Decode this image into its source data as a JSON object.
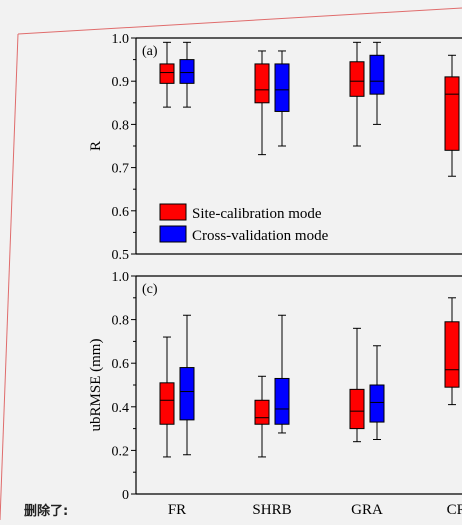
{
  "annotation": "删除了:",
  "colors": {
    "site_calibration": "#ff0000",
    "cross_validation": "#0000ff",
    "frame_accent": "#e06c6c"
  },
  "chart_data": [
    {
      "type": "box",
      "panel_label": "(a)",
      "ylabel": "R",
      "ylim": [
        0.5,
        1.0
      ],
      "yticks": [
        "0.5",
        "0.6",
        "0.7",
        "0.8",
        "0.9",
        "1.0"
      ],
      "categories": [
        "FR",
        "SHRB",
        "GRA",
        "CRO"
      ],
      "legend": {
        "placement": "bottom-left",
        "entries": [
          "Site-calibration mode",
          "Cross-validation mode"
        ]
      },
      "series": [
        {
          "name": "Site-calibration mode",
          "boxes": [
            {
              "min": 0.84,
              "q1": 0.895,
              "median": 0.92,
              "q3": 0.94,
              "max": 0.99
            },
            {
              "min": 0.73,
              "q1": 0.85,
              "median": 0.88,
              "q3": 0.94,
              "max": 0.97
            },
            {
              "min": 0.75,
              "q1": 0.865,
              "median": 0.9,
              "q3": 0.945,
              "max": 0.99
            },
            {
              "min": 0.68,
              "q1": 0.74,
              "median": 0.87,
              "q3": 0.91,
              "max": 0.96
            }
          ]
        },
        {
          "name": "Cross-validation mode",
          "boxes": [
            {
              "min": 0.84,
              "q1": 0.895,
              "median": 0.92,
              "q3": 0.95,
              "max": 0.99
            },
            {
              "min": 0.75,
              "q1": 0.83,
              "median": 0.88,
              "q3": 0.94,
              "max": 0.97
            },
            {
              "min": 0.8,
              "q1": 0.87,
              "median": 0.9,
              "q3": 0.96,
              "max": 0.99
            },
            {
              "min": 0.69,
              "q1": 0.75,
              "median": 0.86,
              "q3": 0.91,
              "max": 0.96
            }
          ]
        }
      ]
    },
    {
      "type": "box",
      "panel_label": "(c)",
      "ylabel": "ubRMSE (mm)",
      "ylim": [
        0,
        1.0
      ],
      "yticks": [
        "0",
        "0.2",
        "0.4",
        "0.6",
        "0.8",
        "1.0"
      ],
      "categories": [
        "FR",
        "SHRB",
        "GRA",
        "CRO"
      ],
      "series": [
        {
          "name": "Site-calibration mode",
          "boxes": [
            {
              "min": 0.17,
              "q1": 0.32,
              "median": 0.43,
              "q3": 0.51,
              "max": 0.72
            },
            {
              "min": 0.17,
              "q1": 0.32,
              "median": 0.35,
              "q3": 0.43,
              "max": 0.54
            },
            {
              "min": 0.24,
              "q1": 0.3,
              "median": 0.38,
              "q3": 0.48,
              "max": 0.76
            },
            {
              "min": 0.41,
              "q1": 0.49,
              "median": 0.57,
              "q3": 0.79,
              "max": 0.9
            }
          ]
        },
        {
          "name": "Cross-validation mode",
          "boxes": [
            {
              "min": 0.18,
              "q1": 0.34,
              "median": 0.47,
              "q3": 0.58,
              "max": 0.82
            },
            {
              "min": 0.28,
              "q1": 0.32,
              "median": 0.39,
              "q3": 0.53,
              "max": 0.82
            },
            {
              "min": 0.25,
              "q1": 0.33,
              "median": 0.42,
              "q3": 0.5,
              "max": 0.68
            },
            {
              "min": 0.44,
              "q1": 0.5,
              "median": 0.61,
              "q3": 0.8,
              "max": 0.87
            }
          ]
        }
      ]
    }
  ]
}
